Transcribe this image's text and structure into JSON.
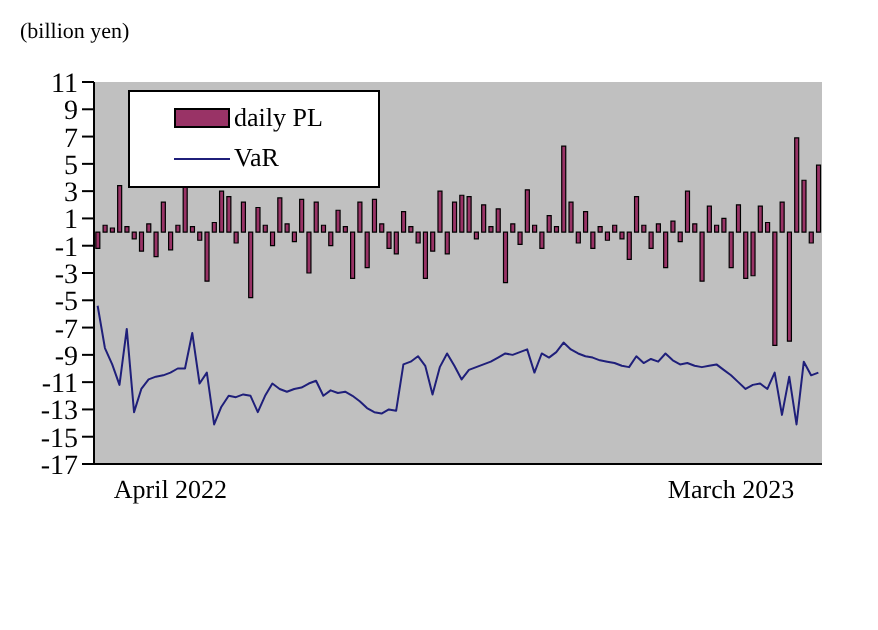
{
  "chart_data": {
    "type": "bar",
    "ylabel": "(billion yen)",
    "categories": [
      null,
      null,
      null,
      null,
      null,
      null,
      null,
      null,
      null,
      null,
      "April 2022",
      null,
      null,
      null,
      null,
      null,
      null,
      null,
      null,
      null,
      null,
      null,
      null,
      null,
      null,
      null,
      null,
      null,
      null,
      null,
      null,
      null,
      null,
      null,
      null,
      null,
      null,
      null,
      null,
      null,
      null,
      null,
      null,
      null,
      null,
      null,
      null,
      null,
      null,
      null,
      null,
      null,
      null,
      null,
      null,
      null,
      null,
      null,
      null,
      null,
      null,
      null,
      null,
      null,
      null,
      null,
      null,
      null,
      null,
      null,
      null,
      null,
      null,
      null,
      null,
      null,
      null,
      null,
      null,
      null,
      null,
      null,
      null,
      null,
      null,
      null,
      null,
      "March 2023",
      null,
      null,
      null,
      null,
      null,
      null,
      null,
      null,
      null,
      null,
      null,
      null
    ],
    "series": [
      {
        "name": "daily PL",
        "color": "#993366",
        "values": [
          -1.2,
          0.5,
          0.3,
          3.4,
          0.4,
          -0.5,
          -1.4,
          0.6,
          -1.8,
          2.2,
          -1.3,
          0.5,
          3.6,
          0.4,
          -0.6,
          -3.6,
          0.7,
          3.0,
          2.6,
          -0.8,
          2.2,
          -4.8,
          1.8,
          0.5,
          -1.0,
          2.5,
          0.6,
          -0.7,
          2.4,
          -3.0,
          2.2,
          0.5,
          -1.0,
          1.6,
          0.4,
          -3.4,
          2.2,
          -2.6,
          2.4,
          0.6,
          -1.2,
          -1.6,
          1.5,
          0.4,
          -0.8,
          -3.4,
          -1.4,
          3.0,
          -1.6,
          2.2,
          2.7,
          2.6,
          -0.5,
          2.0,
          0.4,
          1.7,
          -3.7,
          0.6,
          -0.9,
          3.1,
          0.5,
          -1.2,
          1.2,
          0.4,
          6.3,
          2.2,
          -0.8,
          1.5,
          -1.2,
          0.4,
          -0.6,
          0.5,
          -0.5,
          -2.0,
          2.6,
          0.5,
          -1.2,
          0.6,
          -2.6,
          0.8,
          -0.7,
          3.0,
          0.6,
          -3.6,
          1.9,
          0.5,
          1.0,
          -2.6,
          2.0,
          -3.4,
          -3.2,
          1.9,
          0.7,
          -8.3,
          2.2,
          -8.0,
          6.9,
          3.8,
          -0.8,
          4.9
        ]
      },
      {
        "name": "VaR",
        "type": "line",
        "color": "#1f1f7a",
        "values": [
          -5.4,
          -8.5,
          -9.7,
          -11.2,
          -7.1,
          -13.2,
          -11.5,
          -10.8,
          -10.6,
          -10.5,
          -10.3,
          -10.0,
          -10.0,
          -7.4,
          -11.1,
          -10.3,
          -14.1,
          -12.8,
          -12.0,
          -12.1,
          -11.9,
          -12.0,
          -13.2,
          -12.0,
          -11.1,
          -11.5,
          -11.7,
          -11.5,
          -11.4,
          -11.1,
          -10.9,
          -12.0,
          -11.6,
          -11.8,
          -11.7,
          -12.0,
          -12.4,
          -12.9,
          -13.2,
          -13.3,
          -13.0,
          -13.1,
          -9.7,
          -9.5,
          -9.1,
          -9.8,
          -11.9,
          -9.9,
          -8.9,
          -9.8,
          -10.8,
          -10.1,
          -9.9,
          -9.7,
          -9.5,
          -9.2,
          -8.9,
          -9.0,
          -8.8,
          -8.6,
          -10.3,
          -8.9,
          -9.2,
          -8.8,
          -8.1,
          -8.6,
          -8.9,
          -9.1,
          -9.2,
          -9.4,
          -9.5,
          -9.6,
          -9.8,
          -9.9,
          -9.1,
          -9.6,
          -9.3,
          -9.5,
          -8.9,
          -9.4,
          -9.7,
          -9.6,
          -9.8,
          -9.9,
          -9.8,
          -9.7,
          -10.1,
          -10.5,
          -11.0,
          -11.5,
          -11.2,
          -11.1,
          -11.5,
          -10.3,
          -13.4,
          -10.6,
          -14.1,
          -9.5,
          -10.5,
          -10.3
        ]
      }
    ],
    "ylim": [
      -17,
      11
    ],
    "yticks": [
      11,
      9,
      7,
      5,
      3,
      1,
      -1,
      -3,
      -5,
      -7,
      -9,
      -11,
      -13,
      -15,
      -17
    ],
    "legend": "top left",
    "grid": false,
    "marker": "none",
    "line_style": "solid"
  }
}
